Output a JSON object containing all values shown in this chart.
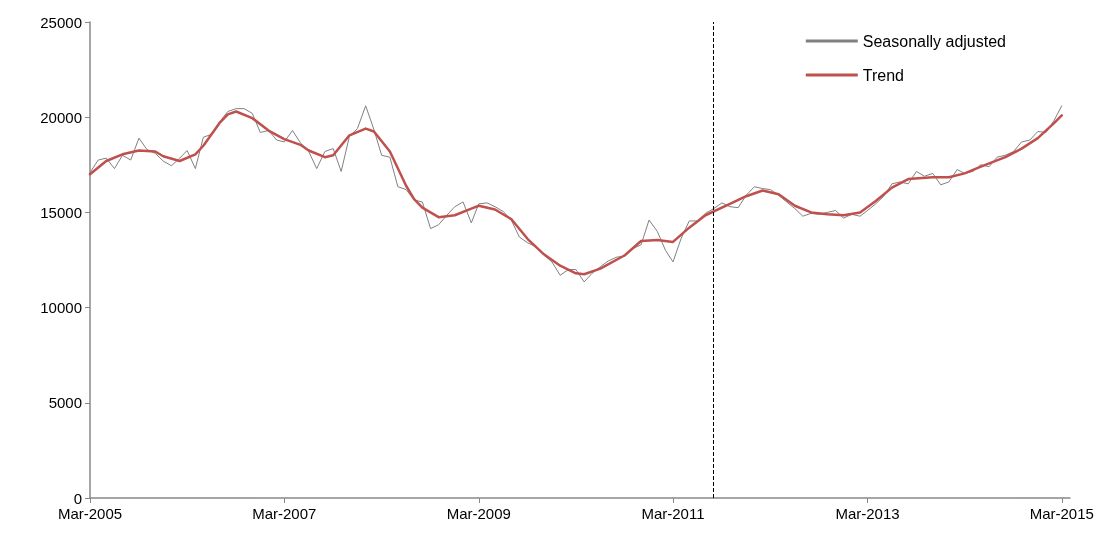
{
  "chart_data": {
    "type": "line",
    "x": [
      "2005-03",
      "2005-04",
      "2005-05",
      "2005-06",
      "2005-07",
      "2005-08",
      "2005-09",
      "2005-10",
      "2005-11",
      "2005-12",
      "2006-01",
      "2006-02",
      "2006-03",
      "2006-04",
      "2006-05",
      "2006-06",
      "2006-07",
      "2006-08",
      "2006-09",
      "2006-10",
      "2006-11",
      "2006-12",
      "2007-01",
      "2007-02",
      "2007-03",
      "2007-04",
      "2007-05",
      "2007-06",
      "2007-07",
      "2007-08",
      "2007-09",
      "2007-10",
      "2007-11",
      "2007-12",
      "2008-01",
      "2008-02",
      "2008-03",
      "2008-04",
      "2008-05",
      "2008-06",
      "2008-07",
      "2008-08",
      "2008-09",
      "2008-10",
      "2008-11",
      "2008-12",
      "2009-01",
      "2009-02",
      "2009-03",
      "2009-04",
      "2009-05",
      "2009-06",
      "2009-07",
      "2009-08",
      "2009-09",
      "2009-10",
      "2009-11",
      "2009-12",
      "2010-01",
      "2010-02",
      "2010-03",
      "2010-04",
      "2010-05",
      "2010-06",
      "2010-07",
      "2010-08",
      "2010-09",
      "2010-10",
      "2010-11",
      "2010-12",
      "2011-01",
      "2011-02",
      "2011-03",
      "2011-04",
      "2011-05",
      "2011-06",
      "2011-07",
      "2011-08",
      "2011-09",
      "2011-10",
      "2011-11",
      "2011-12",
      "2012-01",
      "2012-02",
      "2012-03",
      "2012-04",
      "2012-05",
      "2012-06",
      "2012-07",
      "2012-08",
      "2012-09",
      "2012-10",
      "2012-11",
      "2012-12",
      "2013-01",
      "2013-02",
      "2013-03",
      "2013-04",
      "2013-05",
      "2013-06",
      "2013-07",
      "2013-08",
      "2013-09",
      "2013-10",
      "2013-11",
      "2013-12",
      "2014-01",
      "2014-02",
      "2014-03",
      "2014-04",
      "2014-05",
      "2014-06",
      "2014-07",
      "2014-08",
      "2014-09",
      "2014-10",
      "2014-11",
      "2014-12",
      "2015-01",
      "2015-02",
      "2015-03"
    ],
    "series": [
      {
        "name": "Seasonally adjusted",
        "color": "#808080",
        "values": [
          17100,
          17750,
          17850,
          17300,
          18000,
          17750,
          18900,
          18300,
          18100,
          17700,
          17450,
          17850,
          18250,
          17300,
          18950,
          19100,
          19750,
          20300,
          20450,
          20450,
          20200,
          19200,
          19300,
          18800,
          18700,
          19300,
          18650,
          18200,
          17300,
          18200,
          18350,
          17150,
          19000,
          19400,
          20600,
          19350,
          18000,
          17900,
          16350,
          16200,
          15650,
          15550,
          14150,
          14350,
          14850,
          15300,
          15550,
          14450,
          15450,
          15500,
          15300,
          15050,
          14600,
          13700,
          13400,
          13200,
          12750,
          12400,
          11700,
          12000,
          12000,
          11350,
          11800,
          12150,
          12450,
          12650,
          12700,
          13100,
          13300,
          14600,
          14000,
          13000,
          12400,
          13650,
          14550,
          14550,
          14950,
          15200,
          15500,
          15300,
          15250,
          15900,
          16350,
          16250,
          16200,
          15900,
          15550,
          15200,
          14800,
          14950,
          14900,
          15000,
          15100,
          14700,
          14900,
          14800,
          15100,
          15450,
          15850,
          16500,
          16600,
          16500,
          17150,
          16900,
          17050,
          16450,
          16600,
          17250,
          17050,
          17150,
          17500,
          17400,
          17900,
          18000,
          18200,
          18700,
          18800,
          19250,
          19200,
          19850,
          20600
        ]
      },
      {
        "name": "Trend",
        "color": "#c0504d",
        "x": [
          "2005-03",
          "2005-05",
          "2005-07",
          "2005-09",
          "2005-11",
          "2005-12",
          "2006-02",
          "2006-04",
          "2006-05",
          "2006-07",
          "2006-08",
          "2006-09",
          "2006-11",
          "2007-01",
          "2007-03",
          "2007-05",
          "2007-06",
          "2007-08",
          "2007-09",
          "2007-11",
          "2008-01",
          "2008-02",
          "2008-04",
          "2008-06",
          "2008-07",
          "2008-08",
          "2008-10",
          "2008-12",
          "2009-02",
          "2009-03",
          "2009-05",
          "2009-07",
          "2009-09",
          "2009-11",
          "2010-01",
          "2010-03",
          "2010-04",
          "2010-06",
          "2010-09",
          "2010-11",
          "2011-01",
          "2011-03",
          "2011-05",
          "2011-07",
          "2011-10",
          "2011-12",
          "2012-02",
          "2012-04",
          "2012-06",
          "2012-08",
          "2012-10",
          "2012-12",
          "2013-02",
          "2013-04",
          "2013-06",
          "2013-08",
          "2013-11",
          "2014-01",
          "2014-03",
          "2014-05",
          "2014-08",
          "2014-10",
          "2014-12",
          "2015-02",
          "2015-03"
        ],
        "values": [
          17000,
          17700,
          18050,
          18250,
          18200,
          17950,
          17700,
          18050,
          18500,
          19700,
          20150,
          20300,
          19950,
          19300,
          18850,
          18550,
          18250,
          17900,
          18000,
          19050,
          19400,
          19250,
          18200,
          16400,
          15700,
          15250,
          14750,
          14850,
          15200,
          15350,
          15150,
          14650,
          13600,
          12800,
          12200,
          11800,
          11750,
          12050,
          12750,
          13500,
          13550,
          13450,
          14200,
          14850,
          15450,
          15850,
          16150,
          15950,
          15350,
          15000,
          14900,
          14850,
          15000,
          15600,
          16300,
          16750,
          16850,
          16850,
          17050,
          17400,
          17900,
          18350,
          18900,
          19700,
          20100
        ]
      }
    ],
    "xlim": [
      "2005-03",
      "2015-04"
    ],
    "xticks": [
      {
        "value": "2005-03",
        "label": "Mar-2005"
      },
      {
        "value": "2007-03",
        "label": "Mar-2007"
      },
      {
        "value": "2009-03",
        "label": "Mar-2009"
      },
      {
        "value": "2011-03",
        "label": "Mar-2011"
      },
      {
        "value": "2013-03",
        "label": "Mar-2013"
      },
      {
        "value": "2015-03",
        "label": "Mar-2015"
      }
    ],
    "ylim": [
      0,
      25000
    ],
    "yticks": [
      0,
      5000,
      10000,
      15000,
      20000,
      25000
    ],
    "ref_lines": [
      {
        "axis": "x",
        "value": "2011-08",
        "color": "#000000",
        "line_style": "dashed"
      }
    ],
    "legend": "top right",
    "grid": false,
    "marker": "none",
    "line_style": "solid"
  }
}
